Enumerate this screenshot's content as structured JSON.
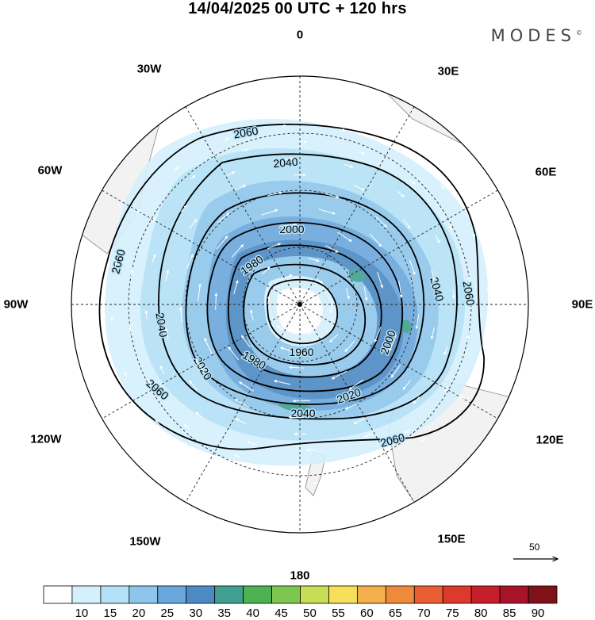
{
  "header": {
    "title": "14/04/2025  00 UTC  + 120 hrs",
    "brand": "MODES",
    "brand_mark": "©"
  },
  "longitudes": [
    "0",
    "30E",
    "60E",
    "90E",
    "120E",
    "150E",
    "180",
    "150W",
    "120W",
    "90W",
    "60W",
    "30W"
  ],
  "contours": {
    "levels": [
      "1960",
      "1980",
      "2000",
      "2020",
      "2040",
      "2060"
    ],
    "labels": [
      {
        "text": "2060",
        "id": "c2060_a"
      },
      {
        "text": "2040",
        "id": "c2040_a"
      },
      {
        "text": "2000",
        "id": "c2000_a"
      },
      {
        "text": "1980",
        "id": "c1980_a"
      },
      {
        "text": "2060",
        "id": "c2060_b"
      },
      {
        "text": "2040",
        "id": "c2040_b"
      },
      {
        "text": "2040",
        "id": "c2040_c"
      },
      {
        "text": "2060",
        "id": "c2060_c"
      },
      {
        "text": "1960",
        "id": "c1960_a"
      },
      {
        "text": "1980",
        "id": "c1980_b"
      },
      {
        "text": "2020",
        "id": "c2020_a"
      },
      {
        "text": "2000",
        "id": "c2000_b"
      },
      {
        "text": "2060",
        "id": "c2060_d"
      },
      {
        "text": "2020",
        "id": "c2020_b"
      },
      {
        "text": "2040",
        "id": "c2040_d"
      },
      {
        "text": "2060",
        "id": "c2060_e"
      }
    ]
  },
  "colorbar": {
    "ticks": [
      "10",
      "15",
      "20",
      "25",
      "30",
      "35",
      "40",
      "45",
      "50",
      "55",
      "60",
      "65",
      "70",
      "75",
      "80",
      "85",
      "90"
    ],
    "colors": [
      "#ffffff",
      "#d4f0fc",
      "#b4e1f7",
      "#8ec6eb",
      "#6aa7dc",
      "#4d8ac4",
      "#409f8e",
      "#4eb152",
      "#7dc650",
      "#c6dd55",
      "#f6df5b",
      "#f4b04c",
      "#ee8a3b",
      "#e95e33",
      "#dc3a2d",
      "#c61f2a",
      "#a7142a",
      "#7f1118"
    ]
  },
  "vector_key": {
    "label": "50"
  },
  "legend_colors": {
    "land": "#f2f2f2",
    "contour": "#000000",
    "arrow": "#ffffff"
  }
}
